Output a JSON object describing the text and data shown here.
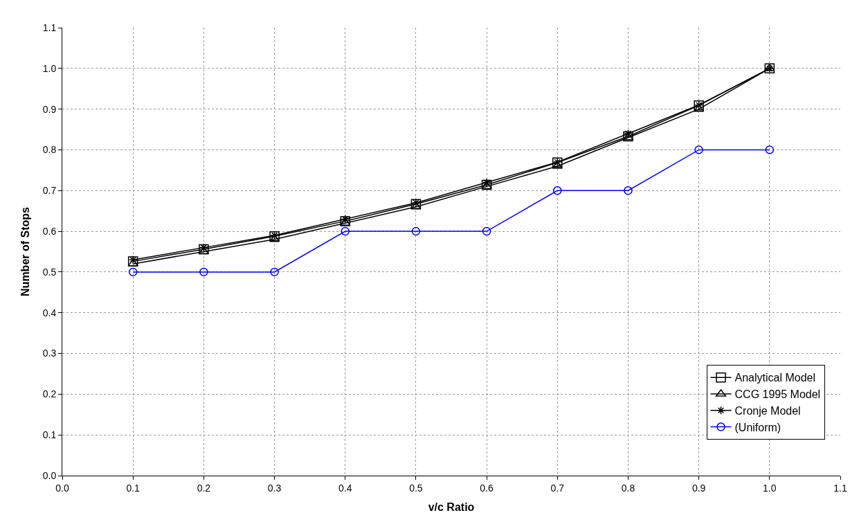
{
  "chart_data": {
    "type": "line",
    "xlabel": "v/c Ratio",
    "ylabel": "Number of Stops",
    "x": [
      0.1,
      0.2,
      0.3,
      0.4,
      0.5,
      0.6,
      0.7,
      0.8,
      0.9,
      1.0
    ],
    "series": [
      {
        "name": "Analytical Model",
        "color": "#000000",
        "marker": "square",
        "values": [
          0.526,
          0.556,
          0.588,
          0.625,
          0.667,
          0.714,
          0.769,
          0.833,
          0.909,
          1.0
        ]
      },
      {
        "name": "CCG 1995 Model",
        "color": "#000000",
        "marker": "triangle",
        "values": [
          0.52,
          0.55,
          0.58,
          0.62,
          0.66,
          0.71,
          0.76,
          0.83,
          0.9,
          1.0
        ]
      },
      {
        "name": "Cronje Model",
        "color": "#000000",
        "marker": "cross",
        "values": [
          0.53,
          0.56,
          0.59,
          0.63,
          0.67,
          0.72,
          0.77,
          0.84,
          0.91,
          1.0
        ]
      },
      {
        "name": "(Uniform)",
        "color": "#0000ff",
        "marker": "circle",
        "values": [
          0.5,
          0.5,
          0.5,
          0.6,
          0.6,
          0.6,
          0.7,
          0.7,
          0.8,
          0.8
        ]
      }
    ],
    "xlim": [
      0.0,
      1.1
    ],
    "xticks": [
      {
        "value": 0.0,
        "label": "0.0"
      },
      0.1,
      0.2,
      0.3,
      0.4,
      0.5,
      0.6,
      0.7,
      0.8,
      0.9,
      {
        "value": 1.0,
        "label": "1.0"
      },
      1.1
    ],
    "ylim": [
      0.0,
      1.1
    ],
    "yticks": [
      {
        "value": 0.0,
        "label": "0.0"
      },
      0.1,
      0.2,
      0.3,
      0.4,
      0.5,
      0.6,
      0.7,
      0.8,
      0.9,
      {
        "value": 1.0,
        "label": "1.0"
      },
      1.1
    ],
    "grid": true,
    "legend": "bottom right",
    "line_style": "solid"
  }
}
